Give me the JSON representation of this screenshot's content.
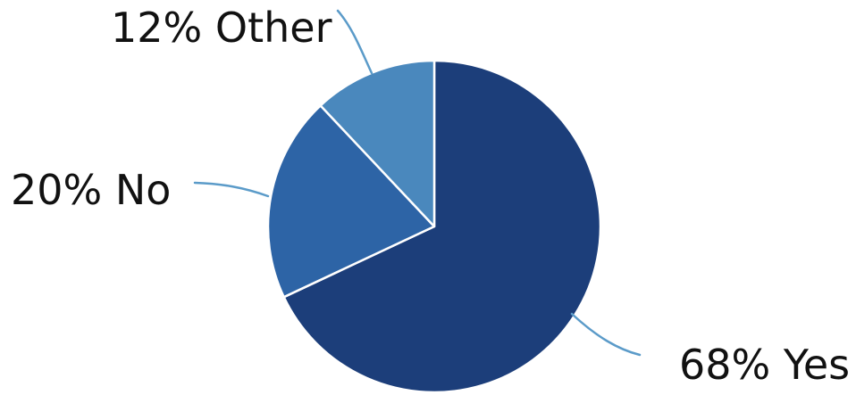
{
  "chart_data": {
    "type": "pie",
    "title": "",
    "categories": [
      "Yes",
      "No",
      "Other"
    ],
    "values": [
      68,
      20,
      12
    ],
    "slice_labels": [
      "68% Yes",
      "20% No",
      "12% Other"
    ],
    "colors": [
      "#1c3e7a",
      "#2d64a6",
      "#4a88bd"
    ],
    "leader_color": "#5b9bc9",
    "start_angle_deg": 0,
    "direction": "clockwise",
    "legend": "none"
  }
}
